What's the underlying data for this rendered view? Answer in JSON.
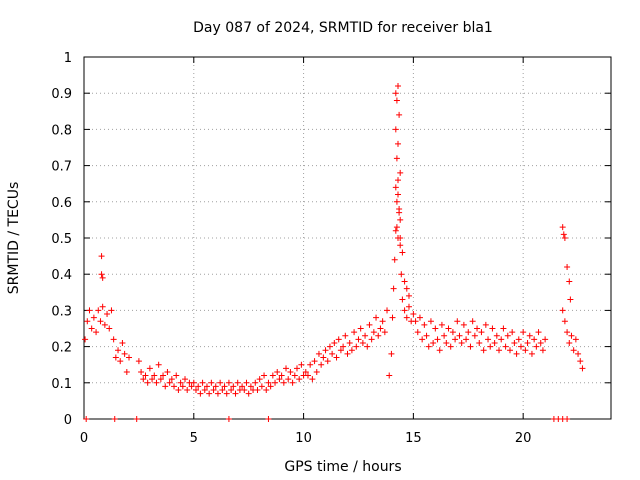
{
  "chart_data": {
    "type": "scatter",
    "title": "Day 087 of 2024, SRMTID for receiver bla1",
    "xlabel": "GPS time / hours",
    "ylabel": "SRMTID / TECUs",
    "xlim": [
      0,
      24
    ],
    "ylim": [
      0,
      1
    ],
    "xticks": [
      0,
      5,
      10,
      15,
      20
    ],
    "yticks": [
      0,
      0.1,
      0.2,
      0.3,
      0.4,
      0.5,
      0.6,
      0.7,
      0.8,
      0.9,
      1
    ],
    "ytick_labels": [
      "0",
      "0.1",
      "0.2",
      "0.3",
      "0.4",
      "0.5",
      "0.6",
      "0.7",
      "0.8",
      "0.9",
      "1"
    ],
    "xtick_labels": [
      "0",
      "5",
      "10",
      "15",
      "20"
    ],
    "grid": true,
    "marker": "+",
    "color": "#ff0000",
    "series": [
      {
        "name": "SRMTID",
        "x": [
          0.05,
          0.15,
          0.25,
          0.35,
          0.45,
          0.55,
          0.65,
          0.75,
          0.85,
          0.95,
          1.05,
          1.15,
          1.25,
          1.35,
          1.45,
          1.55,
          1.65,
          1.75,
          1.85,
          1.95,
          2.05,
          0.8,
          0.8,
          0.85,
          2.5,
          2.6,
          2.7,
          2.8,
          2.9,
          3.0,
          3.1,
          3.2,
          3.3,
          3.4,
          3.5,
          3.6,
          3.7,
          3.8,
          3.9,
          4.0,
          4.1,
          4.2,
          4.3,
          4.4,
          4.5,
          4.6,
          4.7,
          4.8,
          4.9,
          5.0,
          5.1,
          5.2,
          5.3,
          5.4,
          5.5,
          5.6,
          5.7,
          5.8,
          5.9,
          6.0,
          6.1,
          6.2,
          6.3,
          6.4,
          6.5,
          6.6,
          6.7,
          6.8,
          6.9,
          7.0,
          7.1,
          7.2,
          7.3,
          7.4,
          7.5,
          7.6,
          7.7,
          7.8,
          7.9,
          8.0,
          8.1,
          8.2,
          8.3,
          8.4,
          8.5,
          8.6,
          8.7,
          8.8,
          8.9,
          9.0,
          9.1,
          9.2,
          9.3,
          9.4,
          9.5,
          9.6,
          9.7,
          9.8,
          9.9,
          10.0,
          10.1,
          10.2,
          10.3,
          10.4,
          10.5,
          10.6,
          10.7,
          10.8,
          10.9,
          11.0,
          11.1,
          11.2,
          11.3,
          11.4,
          11.5,
          11.6,
          11.7,
          11.8,
          11.9,
          12.0,
          12.1,
          12.2,
          12.3,
          12.4,
          12.5,
          12.6,
          12.7,
          12.8,
          12.9,
          13.0,
          13.1,
          13.2,
          13.3,
          13.4,
          13.5,
          13.6,
          13.7,
          13.8,
          13.9,
          14.0,
          14.05,
          14.1,
          14.15,
          14.2,
          14.25,
          14.3,
          14.35,
          14.4,
          14.45,
          14.5,
          14.6,
          14.7,
          14.8,
          14.9,
          15.0,
          14.2,
          14.25,
          14.3,
          14.35,
          14.2,
          14.3,
          14.25,
          14.4,
          14.2,
          14.3,
          14.35,
          14.4,
          14.25,
          14.3,
          14.4,
          14.5,
          14.6,
          14.7,
          14.8,
          15.1,
          15.2,
          15.3,
          15.4,
          15.5,
          15.6,
          15.7,
          15.8,
          15.9,
          16.0,
          16.1,
          16.2,
          16.3,
          16.4,
          16.5,
          16.6,
          16.7,
          16.8,
          16.9,
          17.0,
          17.1,
          17.2,
          17.3,
          17.4,
          17.5,
          17.6,
          17.7,
          17.8,
          17.9,
          18.0,
          18.1,
          18.2,
          18.3,
          18.4,
          18.5,
          18.6,
          18.7,
          18.8,
          18.9,
          19.0,
          19.1,
          19.2,
          19.3,
          19.4,
          19.5,
          19.6,
          19.7,
          19.8,
          19.9,
          20.0,
          20.1,
          20.2,
          20.3,
          20.4,
          20.5,
          20.6,
          20.7,
          20.8,
          20.9,
          21.0,
          21.8,
          21.9,
          22.0,
          22.1,
          22.2,
          22.3,
          22.4,
          22.5,
          22.6,
          22.7,
          21.8,
          21.85,
          21.9,
          22.0,
          22.1,
          22.15,
          0.1,
          1.4,
          2.4,
          6.6,
          8.4,
          21.4,
          21.6,
          21.8,
          22.0
        ],
        "y": [
          0.22,
          0.27,
          0.3,
          0.25,
          0.28,
          0.24,
          0.3,
          0.27,
          0.31,
          0.26,
          0.29,
          0.25,
          0.3,
          0.22,
          0.17,
          0.19,
          0.16,
          0.21,
          0.18,
          0.13,
          0.17,
          0.45,
          0.4,
          0.39,
          0.16,
          0.13,
          0.11,
          0.12,
          0.1,
          0.14,
          0.11,
          0.12,
          0.1,
          0.15,
          0.11,
          0.12,
          0.09,
          0.13,
          0.1,
          0.11,
          0.09,
          0.12,
          0.08,
          0.1,
          0.09,
          0.11,
          0.08,
          0.1,
          0.09,
          0.1,
          0.08,
          0.09,
          0.07,
          0.1,
          0.08,
          0.09,
          0.07,
          0.1,
          0.08,
          0.09,
          0.07,
          0.1,
          0.08,
          0.09,
          0.07,
          0.1,
          0.08,
          0.09,
          0.07,
          0.1,
          0.08,
          0.09,
          0.08,
          0.1,
          0.07,
          0.09,
          0.08,
          0.1,
          0.08,
          0.11,
          0.09,
          0.12,
          0.08,
          0.1,
          0.09,
          0.12,
          0.1,
          0.13,
          0.11,
          0.12,
          0.1,
          0.14,
          0.11,
          0.13,
          0.1,
          0.12,
          0.14,
          0.11,
          0.15,
          0.12,
          0.13,
          0.12,
          0.15,
          0.11,
          0.16,
          0.13,
          0.18,
          0.15,
          0.17,
          0.19,
          0.16,
          0.2,
          0.18,
          0.21,
          0.17,
          0.22,
          0.19,
          0.2,
          0.23,
          0.18,
          0.21,
          0.19,
          0.24,
          0.2,
          0.22,
          0.25,
          0.21,
          0.23,
          0.2,
          0.26,
          0.22,
          0.24,
          0.28,
          0.23,
          0.25,
          0.27,
          0.24,
          0.3,
          0.12,
          0.18,
          0.28,
          0.36,
          0.44,
          0.52,
          0.6,
          0.66,
          0.58,
          0.5,
          0.4,
          0.33,
          0.3,
          0.28,
          0.31,
          0.27,
          0.29,
          0.9,
          0.88,
          0.92,
          0.84,
          0.8,
          0.76,
          0.72,
          0.68,
          0.64,
          0.62,
          0.57,
          0.55,
          0.53,
          0.5,
          0.48,
          0.46,
          0.38,
          0.36,
          0.34,
          0.27,
          0.24,
          0.28,
          0.22,
          0.26,
          0.23,
          0.2,
          0.27,
          0.21,
          0.25,
          0.22,
          0.19,
          0.26,
          0.23,
          0.21,
          0.25,
          0.2,
          0.24,
          0.22,
          0.27,
          0.23,
          0.21,
          0.26,
          0.22,
          0.24,
          0.2,
          0.27,
          0.23,
          0.25,
          0.21,
          0.24,
          0.19,
          0.26,
          0.22,
          0.2,
          0.25,
          0.21,
          0.23,
          0.19,
          0.22,
          0.25,
          0.2,
          0.23,
          0.19,
          0.24,
          0.21,
          0.18,
          0.22,
          0.2,
          0.24,
          0.19,
          0.21,
          0.23,
          0.18,
          0.22,
          0.2,
          0.24,
          0.21,
          0.19,
          0.22,
          0.3,
          0.27,
          0.24,
          0.21,
          0.23,
          0.19,
          0.22,
          0.18,
          0.16,
          0.14,
          0.53,
          0.51,
          0.5,
          0.42,
          0.38,
          0.33,
          0.0,
          0.0,
          0.0,
          0.0,
          0.0,
          0.0,
          0.0,
          0.0,
          0.0
        ]
      }
    ]
  }
}
